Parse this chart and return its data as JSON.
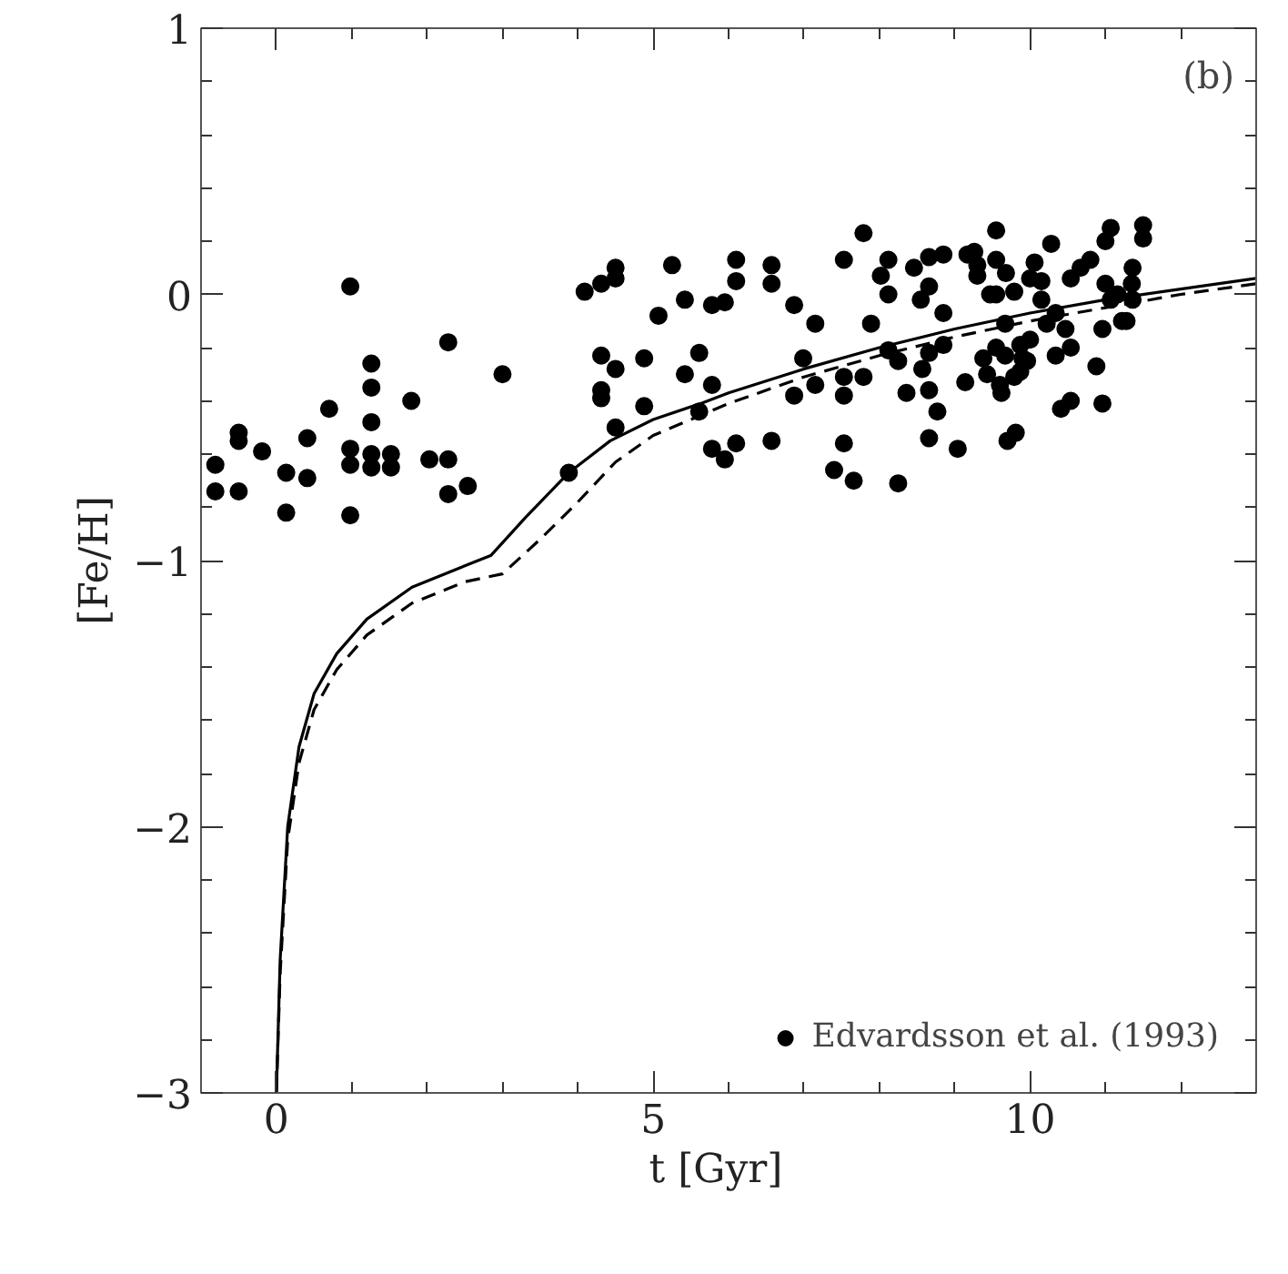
{
  "chart_data": {
    "type": "scatter",
    "xlabel": "t   [Gyr]",
    "ylabel": "[Fe/H]",
    "annotations": [
      "(b)"
    ],
    "xlim": [
      -1,
      13
    ],
    "ylim": [
      -3,
      1
    ],
    "xticks": [
      0,
      5,
      10
    ],
    "yticks": [
      -3,
      -2,
      -1,
      0,
      1
    ],
    "grid": false,
    "legend": "bottom right",
    "marker": "circle",
    "series": [
      {
        "name": "Edvardsson et al. (1993)",
        "color": "#000000",
        "x": [
          -0.81,
          -0.81,
          -0.5,
          -0.5,
          -0.5,
          -0.19,
          0.13,
          0.13,
          0.41,
          0.41,
          0.7,
          0.98,
          0.98,
          0.98,
          0.98,
          1.26,
          1.26,
          1.26,
          1.26,
          1.26,
          1.52,
          1.52,
          1.79,
          2.03,
          2.28,
          2.28,
          2.28,
          2.54,
          3.0,
          3.88,
          4.09,
          4.31,
          4.5,
          4.5,
          4.31,
          4.5,
          4.31,
          4.31,
          4.5,
          4.88,
          4.88,
          5.07,
          5.25,
          5.42,
          5.61,
          5.42,
          5.78,
          5.61,
          5.78,
          5.95,
          5.78,
          5.95,
          6.1,
          6.1,
          6.1,
          6.57,
          6.57,
          6.57,
          6.87,
          6.87,
          6.99,
          7.15,
          7.15,
          7.4,
          7.53,
          7.53,
          7.53,
          7.53,
          7.66,
          7.79,
          7.79,
          7.89,
          8.02,
          8.12,
          8.12,
          8.12,
          8.25,
          8.25,
          8.36,
          8.46,
          8.55,
          8.57,
          8.66,
          8.66,
          8.66,
          8.66,
          8.66,
          8.77,
          8.85,
          8.85,
          8.85,
          9.04,
          9.14,
          9.17,
          9.26,
          9.3,
          9.3,
          9.38,
          9.43,
          9.47,
          9.55,
          9.55,
          9.55,
          9.55,
          9.6,
          9.62,
          9.67,
          9.67,
          9.68,
          9.7,
          9.81,
          9.79,
          9.79,
          9.87,
          9.87,
          9.9,
          9.96,
          10.0,
          10.0,
          10.06,
          10.15,
          10.15,
          10.22,
          10.28,
          10.34,
          10.34,
          10.41,
          10.47,
          10.54,
          10.54,
          10.54,
          10.67,
          10.8,
          10.88,
          10.96,
          10.96,
          11.0,
          11.0,
          11.07,
          11.07,
          11.16,
          11.22,
          11.28,
          11.35,
          11.36,
          11.36,
          11.5,
          11.5
        ],
        "values": [
          -0.64,
          -0.74,
          -0.52,
          -0.55,
          -0.74,
          -0.59,
          -0.67,
          -0.82,
          -0.54,
          -0.69,
          -0.43,
          0.03,
          -0.58,
          -0.64,
          -0.83,
          -0.26,
          -0.35,
          -0.48,
          -0.6,
          -0.65,
          -0.6,
          -0.65,
          -0.4,
          -0.62,
          -0.18,
          -0.62,
          -0.75,
          -0.72,
          -0.3,
          -0.67,
          0.01,
          0.04,
          0.1,
          0.06,
          -0.23,
          -0.28,
          -0.36,
          -0.39,
          -0.5,
          -0.24,
          -0.42,
          -0.08,
          0.11,
          -0.02,
          -0.22,
          -0.3,
          -0.34,
          -0.44,
          -0.58,
          -0.62,
          -0.04,
          -0.03,
          0.13,
          0.05,
          -0.56,
          0.11,
          0.04,
          -0.55,
          -0.04,
          -0.38,
          -0.24,
          -0.11,
          -0.34,
          -0.66,
          0.13,
          -0.31,
          -0.38,
          -0.56,
          -0.7,
          0.23,
          -0.31,
          -0.11,
          0.07,
          0.13,
          0.0,
          -0.21,
          -0.25,
          -0.71,
          -0.37,
          0.1,
          -0.02,
          -0.28,
          0.14,
          0.03,
          -0.22,
          -0.36,
          -0.54,
          -0.44,
          -0.07,
          -0.19,
          0.15,
          -0.58,
          -0.33,
          0.15,
          0.16,
          0.11,
          0.07,
          -0.24,
          -0.3,
          0.0,
          0.24,
          0.13,
          0.0,
          -0.2,
          -0.34,
          -0.37,
          -0.11,
          -0.23,
          0.08,
          -0.55,
          -0.52,
          0.01,
          -0.31,
          -0.19,
          -0.29,
          -0.24,
          -0.25,
          0.06,
          -0.17,
          0.12,
          0.05,
          -0.02,
          -0.11,
          0.19,
          -0.07,
          -0.23,
          -0.43,
          -0.13,
          -0.2,
          -0.4,
          0.06,
          0.1,
          0.13,
          -0.27,
          -0.41,
          -0.13,
          0.04,
          0.2,
          0.25,
          -0.02,
          0.0,
          -0.1,
          -0.1,
          0.04,
          0.1,
          -0.02,
          0.26,
          0.21
        ]
      },
      {
        "type": "line",
        "marker": "none",
        "line_style": "solid",
        "color": "#000000",
        "x": [
          0.0,
          0.05,
          0.15,
          0.3,
          0.5,
          0.8,
          1.2,
          1.8,
          2.5,
          2.85,
          3.3,
          3.88,
          4.43,
          5.0,
          5.63,
          6,
          7,
          8,
          9,
          10,
          11,
          12,
          13
        ],
        "values": [
          -3,
          -2.5,
          -2.0,
          -1.7,
          -1.5,
          -1.35,
          -1.22,
          -1.1,
          -1.02,
          -0.98,
          -0.84,
          -0.67,
          -0.55,
          -0.47,
          -0.41,
          -0.37,
          -0.28,
          -0.2,
          -0.13,
          -0.07,
          -0.02,
          0.02,
          0.06
        ]
      },
      {
        "type": "line",
        "marker": "none",
        "line_style": "dashed",
        "color": "#000000",
        "x": [
          0.0,
          0.05,
          0.15,
          0.3,
          0.5,
          0.8,
          1.2,
          1.8,
          2.5,
          3.0,
          3.5,
          4.0,
          4.5,
          5.0,
          6,
          7,
          8,
          9,
          10,
          11,
          12,
          13
        ],
        "values": [
          -3,
          -2.55,
          -2.05,
          -1.76,
          -1.56,
          -1.41,
          -1.28,
          -1.16,
          -1.08,
          -1.05,
          -0.92,
          -0.78,
          -0.63,
          -0.53,
          -0.41,
          -0.31,
          -0.23,
          -0.16,
          -0.1,
          -0.05,
          0.0,
          0.04
        ]
      }
    ]
  }
}
